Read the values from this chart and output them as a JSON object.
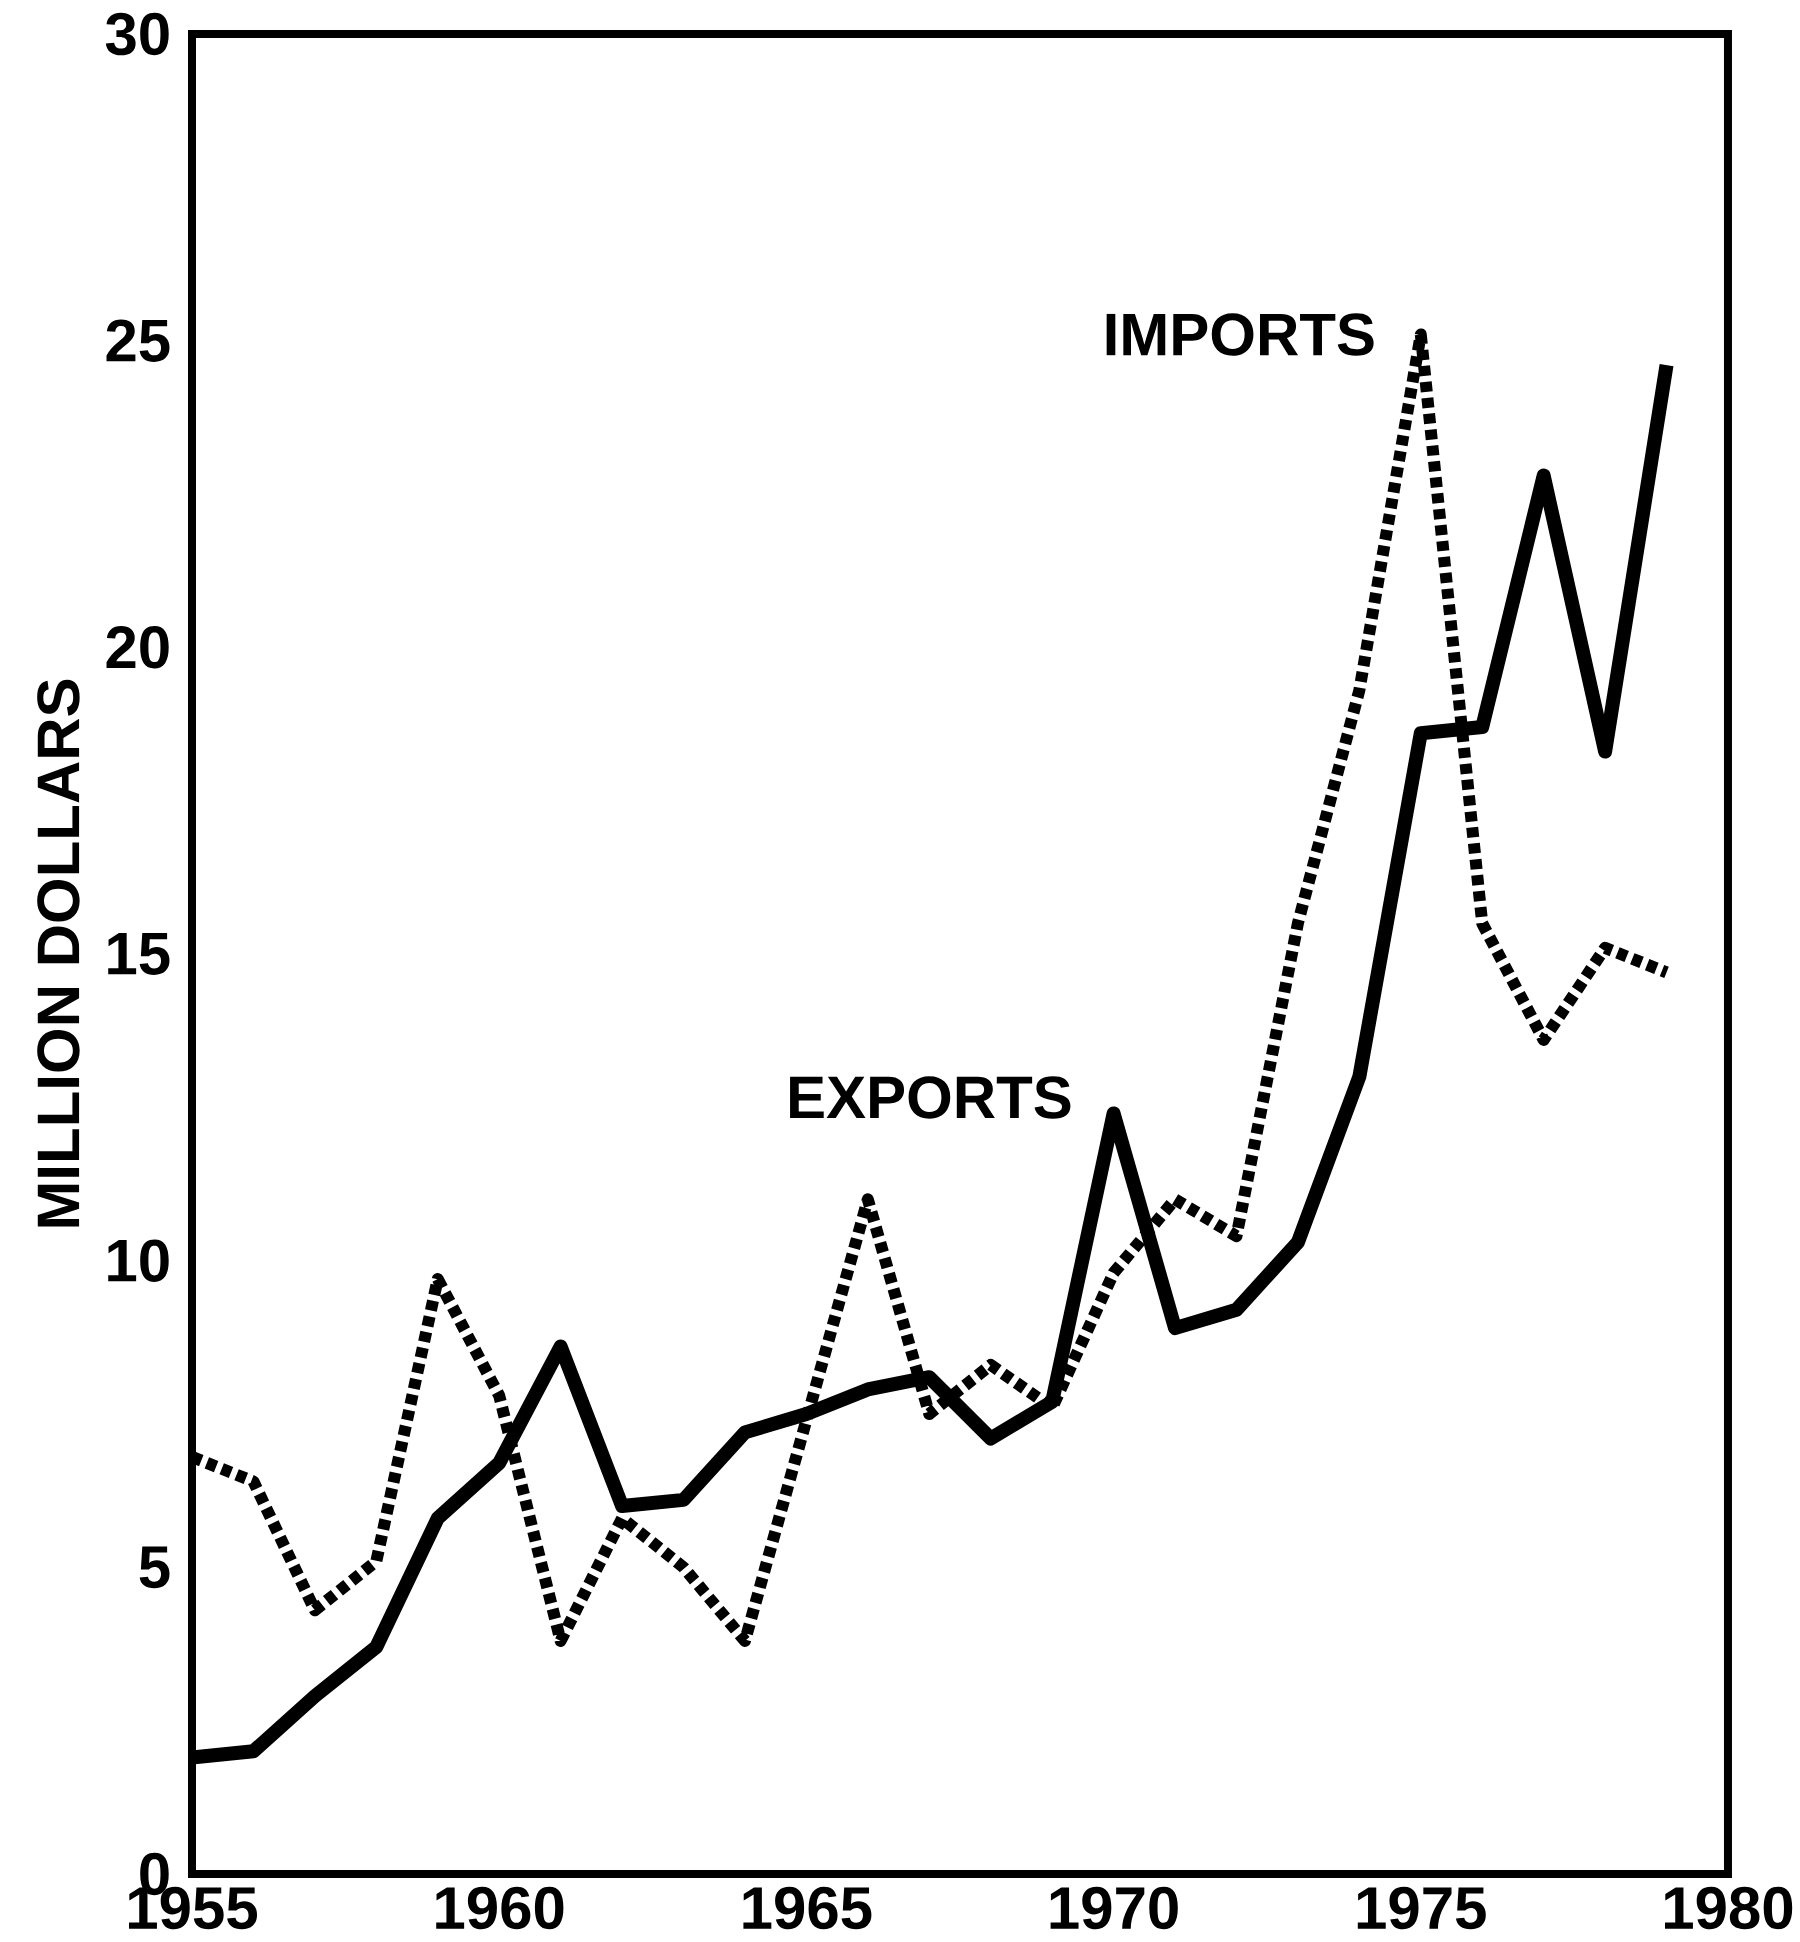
{
  "chart_data": {
    "type": "line",
    "ylabel": "MILLION DOLLARS",
    "x": [
      1955,
      1956,
      1957,
      1958,
      1959,
      1960,
      1961,
      1962,
      1963,
      1964,
      1965,
      1966,
      1967,
      1968,
      1969,
      1970,
      1971,
      1972,
      1973,
      1974,
      1975,
      1976,
      1977,
      1978,
      1979
    ],
    "series": [
      {
        "name": "EXPORTS",
        "color": "#000000",
        "line_style": "solid",
        "values": [
          1.9,
          2.0,
          2.9,
          3.7,
          5.8,
          6.7,
          8.6,
          6.0,
          6.1,
          7.2,
          7.5,
          7.9,
          8.1,
          7.1,
          7.7,
          12.4,
          8.9,
          9.2,
          10.3,
          13.0,
          18.6,
          18.7,
          22.8,
          18.3,
          24.6
        ]
      },
      {
        "name": "IMPORTS",
        "color": "#000000",
        "line_style": "dotted",
        "values": [
          6.8,
          6.4,
          4.3,
          5.1,
          9.7,
          7.8,
          3.8,
          5.8,
          5.0,
          3.8,
          7.4,
          11.0,
          7.5,
          8.3,
          7.6,
          9.8,
          11.0,
          10.4,
          15.5,
          19.3,
          25.1,
          15.5,
          13.6,
          15.1,
          14.7
        ]
      }
    ],
    "xlim": [
      1955,
      1980
    ],
    "xticks": [
      1955,
      1960,
      1965,
      1970,
      1975,
      1980
    ],
    "ylim": [
      0,
      30
    ],
    "yticks": [
      0,
      5,
      10,
      15,
      20,
      25,
      30
    ],
    "grid": false,
    "marker": "none"
  }
}
